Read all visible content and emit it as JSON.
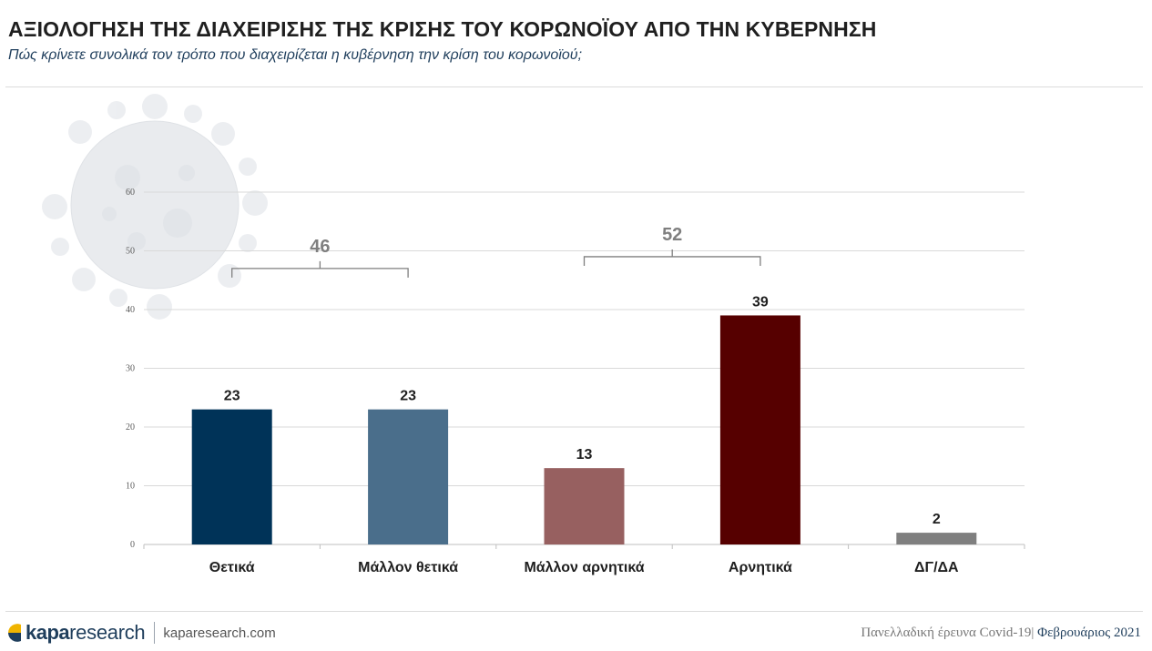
{
  "header": {
    "title": "ΑΞΙΟΛΟΓΗΣΗ ΤΗΣ ΔΙΑΧΕΙΡΙΣΗΣ ΤΗΣ ΚΡΙΣΗΣ ΤΟΥ ΚΟΡΩΝΟΪΟΥ ΑΠΟ ΤΗΝ ΚΥΒΕΡΝΗΣΗ",
    "subtitle": "Πώς κρίνετε συνολικά τον τρόπο που διαχειρίζεται η κυβέρνηση την κρίση του κορωνοϊού;"
  },
  "chart_data": {
    "type": "bar",
    "categories": [
      "Θετικά",
      "Μάλλον θετικά",
      "Μάλλον αρνητικά",
      "Αρνητικά",
      "ΔΓ/ΔΑ"
    ],
    "values": [
      23,
      23,
      13,
      39,
      2
    ],
    "data_labels": [
      "23",
      "23",
      "13",
      "39",
      "2"
    ],
    "bar_colors": [
      "#003358",
      "#4a6e8b",
      "#976060",
      "#560000",
      "#7f7f7f"
    ],
    "ylim": [
      0,
      60
    ],
    "yticks": [
      0,
      10,
      20,
      30,
      40,
      50,
      60
    ],
    "grid": true,
    "xlabel": "",
    "ylabel": "",
    "brackets": [
      {
        "label": "46",
        "from_category": 0,
        "to_category": 1,
        "level": 47
      },
      {
        "label": "52",
        "from_category": 2,
        "to_category": 3,
        "level": 49
      }
    ]
  },
  "footer": {
    "brand_bold": "kapa",
    "brand_light": "research",
    "website": "kaparesearch.com",
    "source_text": "Πανελλαδική έρευνα Covid-19",
    "separator": "|",
    "date_text": "Φεβρουάριος 2021"
  },
  "colors": {
    "accent_navy": "#1f3e5c",
    "logo_gold": "#f0b400",
    "gridline": "#d9d9d9",
    "bracket": "#7f7f7f"
  },
  "icons": {
    "background": "coronavirus-watermark-icon",
    "logo": "kapa-logo-mark-icon"
  }
}
